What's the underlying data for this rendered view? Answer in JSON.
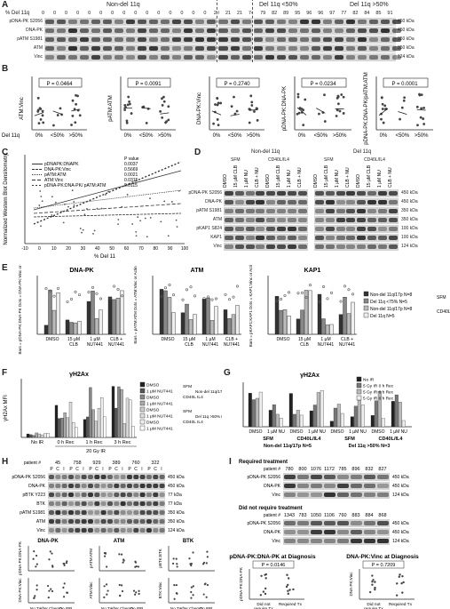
{
  "panelA": {
    "letter": "A",
    "header_pct": "% Del 11q",
    "group_nondel": "Non-del 11q",
    "group_lt50": "Del 11q <50%",
    "group_gt50": "Del 11q >50%",
    "pct_values": [
      "0",
      "0",
      "0",
      "0",
      "0",
      "0",
      "0",
      "0",
      "0",
      "0",
      "0",
      "0",
      "0",
      "0",
      "0",
      "20",
      "21",
      "21",
      "74",
      "79",
      "82",
      "89",
      "95",
      "96",
      "96",
      "97",
      "77",
      "82",
      "84",
      "85",
      "91"
    ],
    "rows": [
      "pDNA-PK S2056",
      "DNA-PK",
      "pATM S1981",
      "ATM",
      "Vinc"
    ],
    "kda": [
      "450 kDa",
      "450 kDa",
      "350 kDa",
      "350 kDa",
      "124 kDa"
    ]
  },
  "panelB": {
    "letter": "B",
    "plots": [
      {
        "ylabel": "ATM:Vinc",
        "p": "P = 0.0464"
      },
      {
        "ylabel": "pATM:ATM",
        "p": "P = 0.0091"
      },
      {
        "ylabel": "DNA-PK:Vinc",
        "p": "P = 0.2740"
      },
      {
        "ylabel": "pDNA-PK:DNA-PK",
        "p": "P = 0.0234"
      },
      {
        "ylabel": "pDNA-PK:DNA-PK/pATM:ATM",
        "p": "P = 0.0001"
      }
    ],
    "xlabel_prefix": "Del 11q",
    "xcats": [
      "0%",
      "<50%",
      ">50%"
    ]
  },
  "panelC": {
    "letter": "C",
    "ylabel": "Normalized Western Blot Densitometry",
    "xlabel": "% Del 11",
    "legend_title": "P value",
    "legend": [
      {
        "name": "pDNAPK:DNAPK",
        "p": "0.0037"
      },
      {
        "name": "DNA-PK:Vinc",
        "p": "0.5669"
      },
      {
        "name": "pATM:ATM",
        "p": "0.0021"
      },
      {
        "name": "ATM:Vinc",
        "p": "0.0315"
      },
      {
        "name": "pDNA-PK:DNA-PK/ pATM:ATM",
        "p": "0.0115"
      }
    ],
    "xticks": [
      "-10",
      "0",
      "10",
      "20",
      "30",
      "40",
      "50",
      "60",
      "70",
      "80",
      "90",
      "100"
    ]
  },
  "panelD": {
    "letter": "D",
    "left_title": "Non-del 11q",
    "right_title": "Del 11q",
    "cond_sfm": "SFM",
    "cond_cd40": "CD40L/IL4",
    "lanes": [
      "DMSO",
      "15 µM CLB",
      "1 µM NU",
      "CLB + NU",
      "DMSO",
      "15 µM CLB",
      "1 µM NU",
      "CLB + NU"
    ],
    "rows": [
      "pDNA-PK S2056",
      "DNA-PK",
      "pATM S1981",
      "ATM",
      "pKAP1 S824",
      "KAP1",
      "Vinc"
    ],
    "kda": [
      "450 kDa",
      "450 kDa",
      "350 kDa",
      "350 kDa",
      "100 kDa",
      "100 kDa",
      "124 kDa"
    ]
  },
  "panelE": {
    "letter": "E",
    "titles": [
      "DNA-PK",
      "ATM",
      "KAP1"
    ],
    "ylabels": [
      "Bars = pDNA-PK:DNA-PK Dots = DNA-PK:Vinc or Actin",
      "Bars = pATM:ATM Dots = ATM:Vinc or Actin",
      "Bars = pKAP1:KAP1 Dots = KAP1:Vinc or Actin"
    ],
    "xcats": [
      "DMSO",
      "15 µM CLB",
      "1 µM NU7441",
      "CLB + NU7441"
    ],
    "legend": [
      "Non-del 11q/17p N=8",
      "Del 11q <75% N=5",
      "Non-del 11q/17p N=8",
      "Del 11q N=5"
    ],
    "legend_side": [
      "SFM",
      "CD40L IL4"
    ]
  },
  "panelF": {
    "letter": "F",
    "title": "γH2Ax",
    "ylabel": "γH2Ax MFI",
    "xcats": [
      "No IR",
      "0 h Rec",
      "1 h Rec",
      "3 h Rec"
    ],
    "xlabel": "20 Gy IR",
    "legend": [
      "DMSO",
      "1 µM NU7441",
      "DMSO",
      "1 µM NU7441",
      "DMSO",
      "1 µM NU7441",
      "DMSO",
      "1 µM NU7441"
    ],
    "groups": [
      "SFM",
      "CD40L IL4",
      "SFM",
      "CD40L IL4"
    ],
    "group_notes": [
      "Non-del 11q/17p N = 6",
      "Del 11q >50% N = 3"
    ]
  },
  "panelG": {
    "letter": "G",
    "title": "γH2Ax",
    "legend": [
      "No IR",
      "5 Gy IR 0 h Rec",
      "5 Gy IR 6 h Rec",
      "5 Gy IR 0 h Rec"
    ],
    "xcats": [
      "DMSO",
      "1 µM NU",
      "DMSO",
      "1 µM NU",
      "DMSO",
      "1 µM NU",
      "DMSO",
      "1 µM NU"
    ],
    "conds": [
      "SFM",
      "CD40L/IL4",
      "SFM",
      "CD40L/IL4"
    ],
    "groups": [
      "Non-del 11q/17p N=5",
      "Del 11q >50% N=3"
    ]
  },
  "panelH": {
    "letter": "H",
    "patient_label": "patient #",
    "patients": [
      "45",
      "758",
      "929",
      "389",
      "760",
      "322"
    ],
    "lane_codes": [
      "P",
      "C",
      "I"
    ],
    "rows": [
      "pDNA-PK S2056",
      "DNA-PK",
      "pBTK Y223",
      "BTK",
      "pATM S1981",
      "ATM",
      "Vinc"
    ],
    "kda": [
      "450 kDa",
      "450 kDa",
      "77 kDa",
      "77 kDa",
      "350 kDa",
      "350 kDa",
      "124 kDa"
    ],
    "plot_titles": [
      "DNA-PK",
      "ATM",
      "BTK"
    ],
    "ylabels_top": [
      "pDNA-PK:DNA-PK",
      "pATM:ATM",
      "pBTK:BTK"
    ],
    "ylabels_bottom": [
      "DNA-PK:Vinc",
      "ATM:Vinc",
      "BTK:Vinc"
    ],
    "xcats": [
      "No Tx",
      "After Chemo",
      "On IBR"
    ]
  },
  "panelI": {
    "letter": "I",
    "req_title": "Required treatment",
    "req_patients": [
      "780",
      "800",
      "1076",
      "1172",
      "785",
      "896",
      "832",
      "827"
    ],
    "noreq_title": "Did not require treatment",
    "noreq_patients": [
      "1343",
      "783",
      "1050",
      "1106",
      "760",
      "883",
      "884",
      "868"
    ],
    "patient_label": "patient #",
    "rows": [
      "pDNA-PK S2056",
      "DNA-PK",
      "Vinc"
    ],
    "kda": [
      "450 kDa",
      "450 kDa",
      "124 kDa"
    ],
    "plot1_title": "pDNA-PK:DNA-PK at Diagnosis",
    "plot1_p": "P = 0.0146",
    "plot1_ylabel": "pDNA-PK:DNA-PK",
    "plot2_title": "DNA-PK:Vinc at Diagnosis",
    "plot2_p": "P = 0.7209",
    "plot2_ylabel": "DNA-PK:Vinc",
    "xcats": [
      "Did not require Tx",
      "Required Tx"
    ]
  }
}
